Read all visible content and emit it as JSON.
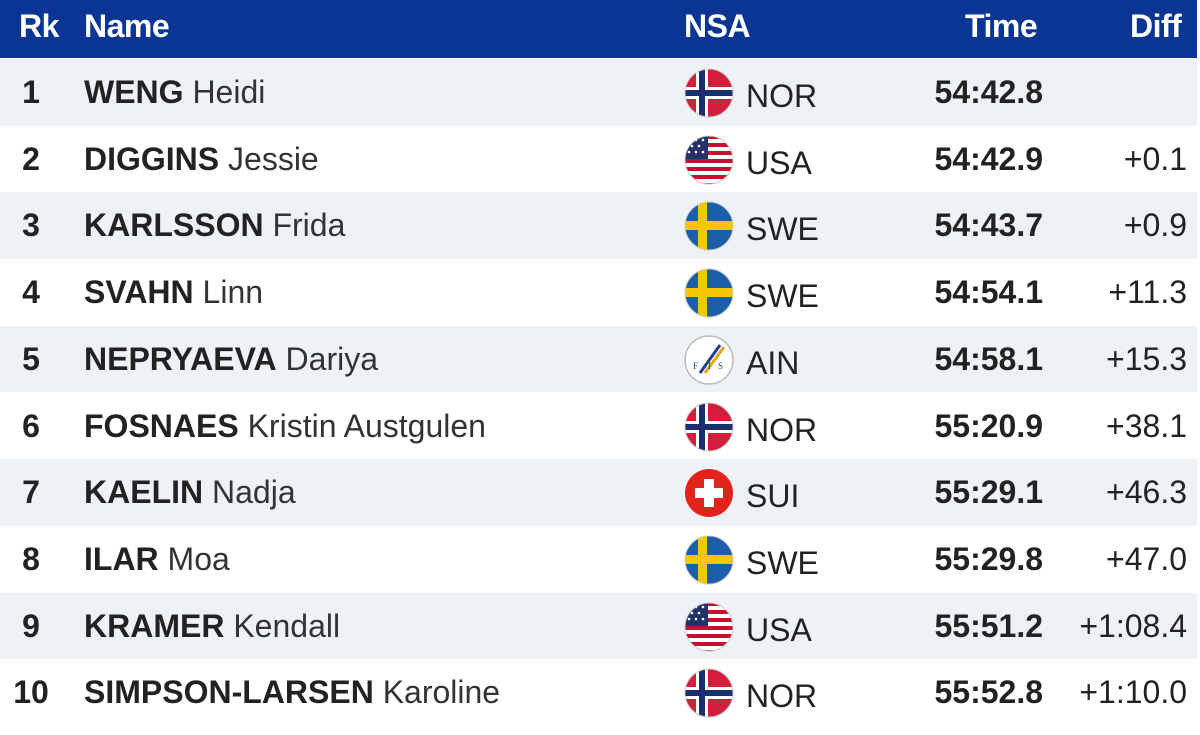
{
  "header": {
    "rk": "Rk",
    "name": "Name",
    "nsa": "NSA",
    "time": "Time",
    "diff": "Diff"
  },
  "colors": {
    "header_bg": "#0a3594",
    "row_alt": "#eef1f6"
  },
  "rows": [
    {
      "rk": "1",
      "surname": "WENG",
      "given": "Heidi",
      "nsa": "NOR",
      "flag": "norway-flag-icon",
      "time": "54:42.8",
      "diff": ""
    },
    {
      "rk": "2",
      "surname": "DIGGINS",
      "given": "Jessie",
      "nsa": "USA",
      "flag": "usa-flag-icon",
      "time": "54:42.9",
      "diff": "+0.1"
    },
    {
      "rk": "3",
      "surname": "KARLSSON",
      "given": "Frida",
      "nsa": "SWE",
      "flag": "sweden-flag-icon",
      "time": "54:43.7",
      "diff": "+0.9"
    },
    {
      "rk": "4",
      "surname": "SVAHN",
      "given": "Linn",
      "nsa": "SWE",
      "flag": "sweden-flag-icon",
      "time": "54:54.1",
      "diff": "+11.3"
    },
    {
      "rk": "5",
      "surname": "NEPRYAEVA",
      "given": "Dariya",
      "nsa": "AIN",
      "flag": "fis-logo-icon",
      "time": "54:58.1",
      "diff": "+15.3"
    },
    {
      "rk": "6",
      "surname": "FOSNAES",
      "given": "Kristin Austgulen",
      "nsa": "NOR",
      "flag": "norway-flag-icon",
      "time": "55:20.9",
      "diff": "+38.1"
    },
    {
      "rk": "7",
      "surname": "KAELIN",
      "given": "Nadja",
      "nsa": "SUI",
      "flag": "switzerland-flag-icon",
      "time": "55:29.1",
      "diff": "+46.3"
    },
    {
      "rk": "8",
      "surname": "ILAR",
      "given": "Moa",
      "nsa": "SWE",
      "flag": "sweden-flag-icon",
      "time": "55:29.8",
      "diff": "+47.0"
    },
    {
      "rk": "9",
      "surname": "KRAMER",
      "given": "Kendall",
      "nsa": "USA",
      "flag": "usa-flag-icon",
      "time": "55:51.2",
      "diff": "+1:08.4"
    },
    {
      "rk": "10",
      "surname": "SIMPSON-LARSEN",
      "given": "Karoline",
      "nsa": "NOR",
      "flag": "norway-flag-icon",
      "time": "55:52.8",
      "diff": "+1:10.0"
    }
  ]
}
